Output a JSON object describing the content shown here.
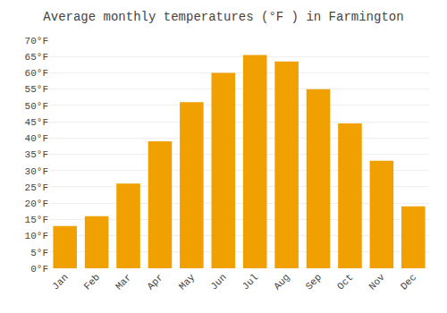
{
  "chart_data": {
    "type": "bar",
    "title": "Average monthly temperatures (°F ) in Farmington",
    "categories": [
      "Jan",
      "Feb",
      "Mar",
      "Apr",
      "May",
      "Jun",
      "Jul",
      "Aug",
      "Sep",
      "Oct",
      "Nov",
      "Dec"
    ],
    "values": [
      13,
      16,
      26,
      39,
      51,
      60,
      65.5,
      63.5,
      55,
      44.5,
      33,
      19
    ],
    "color": "#F0A000",
    "ylim": [
      0,
      70
    ],
    "yticks": [
      {
        "value": 0,
        "label": "0°F"
      },
      {
        "value": 5,
        "label": "5°F"
      },
      {
        "value": 10,
        "label": "10°F"
      },
      {
        "value": 15,
        "label": "15°F"
      },
      {
        "value": 20,
        "label": "20°F"
      },
      {
        "value": 25,
        "label": "25°F"
      },
      {
        "value": 30,
        "label": "30°F"
      },
      {
        "value": 35,
        "label": "35°F"
      },
      {
        "value": 40,
        "label": "40°F"
      },
      {
        "value": 45,
        "label": "45°F"
      },
      {
        "value": 50,
        "label": "50°F"
      },
      {
        "value": 55,
        "label": "55°F"
      },
      {
        "value": 60,
        "label": "60°F"
      },
      {
        "value": 65,
        "label": "65°F"
      },
      {
        "value": 70,
        "label": "70°F"
      }
    ],
    "grid": true
  }
}
